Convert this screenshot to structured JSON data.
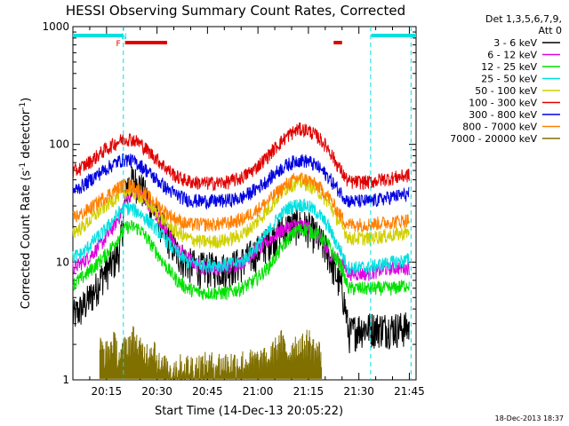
{
  "chart_data": {
    "type": "line",
    "title": "HESSI Observing Summary Count Rates, Corrected",
    "xlabel": "Start Time (14-Dec-13 20:05:22)",
    "ylabel": "Corrected Count Rate (s",
    "ylabel_sup": "-1",
    "ylabel_mid": " detector",
    "ylabel_end": ")",
    "x_unit": "minutes since 20:05:22",
    "xlim": [
      0,
      102
    ],
    "ylim": [
      1,
      1000
    ],
    "yscale": "log",
    "x_ticks": [
      {
        "t": 10,
        "label": "20:15"
      },
      {
        "t": 25,
        "label": "20:30"
      },
      {
        "t": 40,
        "label": "20:45"
      },
      {
        "t": 55,
        "label": "21:00"
      },
      {
        "t": 70,
        "label": "21:15"
      },
      {
        "t": 85,
        "label": "21:30"
      },
      {
        "t": 100,
        "label": "21:45"
      }
    ],
    "y_ticks": [
      {
        "v": 1,
        "label": "1"
      },
      {
        "v": 10,
        "label": "10"
      },
      {
        "v": 100,
        "label": "100"
      },
      {
        "v": 1000,
        "label": "1000"
      }
    ],
    "legend": {
      "position": "right",
      "header": [
        "Det 1,3,5,6,7,9,",
        "Att 0"
      ],
      "entries": [
        {
          "label": "3 - 6 keV",
          "color": "#000000"
        },
        {
          "label": "6 - 12 keV",
          "color": "#e000e0"
        },
        {
          "label": "12 - 25 keV",
          "color": "#00e000"
        },
        {
          "label": "25 - 50 keV",
          "color": "#00e0e0"
        },
        {
          "label": "50 - 100 keV",
          "color": "#d0d000"
        },
        {
          "label": "100 - 300 keV",
          "color": "#e00000"
        },
        {
          "label": "300 - 800 keV",
          "color": "#0000e0"
        },
        {
          "label": "800 - 7000 keV",
          "color": "#ff8000"
        },
        {
          "label": "7000 - 20000 keV",
          "color": "#807000"
        }
      ]
    },
    "series": [
      {
        "name": "3 - 6 keV",
        "x": [
          0,
          3,
          6,
          9,
          12,
          14,
          16,
          18,
          20,
          22,
          25,
          28,
          31,
          34,
          38,
          42,
          46,
          50,
          54,
          58,
          61,
          64,
          67,
          70,
          73,
          76,
          78,
          80,
          81,
          82,
          85,
          88,
          91,
          95,
          100
        ],
        "y": [
          3.5,
          4.2,
          5.5,
          8,
          10,
          13,
          45,
          50,
          45,
          35,
          25,
          17,
          12,
          10,
          9,
          9,
          9,
          10,
          12,
          15,
          18,
          20,
          21,
          20,
          16,
          12,
          8,
          6,
          4,
          2.5,
          2.8,
          2.8,
          2.8,
          2.8,
          2.8
        ]
      },
      {
        "name": "6 - 12 keV",
        "x": [
          0,
          3,
          6,
          9,
          12,
          14,
          16,
          18,
          20,
          22,
          25,
          28,
          31,
          34,
          38,
          42,
          46,
          50,
          54,
          58,
          61,
          64,
          67,
          70,
          73,
          76,
          78,
          80,
          81,
          82,
          85,
          88,
          91,
          95,
          100
        ],
        "y": [
          9,
          10,
          12,
          15,
          20,
          25,
          35,
          40,
          38,
          33,
          25,
          18,
          13,
          11,
          9,
          9,
          9,
          10,
          12,
          15,
          18,
          20,
          21,
          20,
          16,
          12,
          11,
          10,
          9,
          8,
          8,
          8,
          8.5,
          9,
          9
        ]
      },
      {
        "name": "12 - 25 keV",
        "x": [
          0,
          3,
          6,
          9,
          12,
          14,
          16,
          18,
          20,
          22,
          25,
          28,
          31,
          34,
          38,
          42,
          46,
          50,
          54,
          58,
          61,
          64,
          67,
          70,
          73,
          76,
          78,
          80,
          81,
          82,
          85,
          88,
          91,
          95,
          100
        ],
        "y": [
          6.5,
          7.5,
          9,
          11,
          14,
          17,
          20,
          20,
          19,
          16,
          12,
          9,
          7,
          6,
          5.5,
          5.5,
          5.5,
          6,
          7,
          9,
          12,
          16,
          19,
          19,
          17,
          14,
          11,
          9,
          7,
          6,
          6,
          6,
          6,
          6,
          6.5
        ]
      },
      {
        "name": "25 - 50 keV",
        "x": [
          0,
          3,
          6,
          9,
          12,
          14,
          16,
          18,
          20,
          22,
          25,
          28,
          31,
          34,
          38,
          42,
          46,
          50,
          54,
          58,
          61,
          64,
          67,
          70,
          73,
          76,
          78,
          80,
          81,
          82,
          85,
          88,
          91,
          95,
          100
        ],
        "y": [
          11,
          12,
          15,
          18,
          23,
          27,
          29,
          28,
          26,
          23,
          19,
          15,
          12,
          10,
          9.5,
          9.5,
          9.5,
          10,
          13,
          18,
          24,
          29,
          31,
          30,
          26,
          20,
          15,
          12,
          10,
          9,
          9,
          9,
          9.5,
          10,
          10.5
        ]
      },
      {
        "name": "50 - 100 keV",
        "x": [
          0,
          3,
          6,
          9,
          12,
          14,
          16,
          18,
          20,
          22,
          25,
          28,
          31,
          34,
          38,
          42,
          46,
          50,
          54,
          58,
          61,
          64,
          67,
          70,
          73,
          76,
          78,
          80,
          81,
          82,
          85,
          88,
          91,
          95,
          100
        ],
        "y": [
          18,
          20,
          24,
          29,
          34,
          38,
          40,
          39,
          36,
          32,
          26,
          21,
          18,
          16,
          15,
          15,
          15.5,
          17,
          21,
          28,
          36,
          44,
          48,
          46,
          40,
          32,
          25,
          20,
          18,
          16,
          16,
          16,
          16.5,
          17,
          18
        ]
      },
      {
        "name": "100 - 300 keV",
        "x": [
          0,
          3,
          6,
          9,
          12,
          14,
          16,
          18,
          20,
          22,
          25,
          28,
          31,
          34,
          38,
          42,
          46,
          50,
          54,
          58,
          61,
          64,
          67,
          70,
          73,
          76,
          78,
          80,
          81,
          82,
          85,
          88,
          91,
          95,
          100
        ],
        "y": [
          58,
          65,
          75,
          88,
          100,
          108,
          112,
          110,
          102,
          90,
          75,
          62,
          53,
          49,
          47,
          47,
          48,
          52,
          62,
          80,
          100,
          120,
          135,
          132,
          115,
          92,
          72,
          58,
          52,
          48,
          48,
          48,
          50,
          52,
          55
        ]
      },
      {
        "name": "300 - 800 keV",
        "x": [
          0,
          3,
          6,
          9,
          12,
          14,
          16,
          18,
          20,
          22,
          25,
          28,
          31,
          34,
          38,
          42,
          46,
          50,
          54,
          58,
          61,
          64,
          67,
          70,
          73,
          76,
          78,
          80,
          81,
          82,
          85,
          88,
          91,
          95,
          100
        ],
        "y": [
          40,
          45,
          52,
          60,
          68,
          73,
          75,
          72,
          67,
          60,
          50,
          42,
          37,
          34,
          33,
          33,
          33.5,
          35,
          41,
          50,
          60,
          68,
          74,
          72,
          64,
          53,
          44,
          38,
          35,
          33,
          33,
          33,
          34,
          36,
          38
        ]
      },
      {
        "name": "800 - 7000 keV",
        "x": [
          0,
          3,
          6,
          9,
          12,
          14,
          16,
          18,
          20,
          22,
          25,
          28,
          31,
          34,
          38,
          42,
          46,
          50,
          54,
          58,
          61,
          64,
          67,
          70,
          73,
          76,
          78,
          80,
          81,
          82,
          85,
          88,
          91,
          95,
          100
        ],
        "y": [
          24,
          26,
          30,
          35,
          40,
          44,
          45,
          44,
          41,
          37,
          31,
          26,
          23,
          21,
          21,
          21,
          21.5,
          23,
          27,
          33,
          40,
          47,
          52,
          50,
          44,
          36,
          29,
          24,
          22,
          21,
          21,
          21,
          21.5,
          22,
          23
        ]
      },
      {
        "name": "7000 - 20000 keV",
        "x": [
          8,
          10,
          12,
          14,
          16,
          18,
          20,
          22,
          24,
          25,
          26,
          58,
          60,
          62,
          64,
          66,
          68,
          70,
          72,
          74
        ],
        "y": [
          1.8,
          1.6,
          2.0,
          1.5,
          1.9,
          2.2,
          1.7,
          1.6,
          1.9,
          1.5,
          1.2,
          1.4,
          1.7,
          2.0,
          1.6,
          1.9,
          1.8,
          2.1,
          1.7,
          1.6
        ]
      }
    ],
    "annotations": {
      "flag_labels": [
        {
          "label": "F",
          "t": 13.5,
          "color": "#e00000"
        },
        {
          "label": "N",
          "t": 15.2,
          "color": "#00e0e0"
        }
      ],
      "cyan_bars": [
        [
          0,
          14.8
        ],
        [
          88.7,
          102
        ]
      ],
      "red_bars": [
        [
          15.5,
          28
        ],
        [
          77.5,
          80
        ]
      ],
      "dashed_lines": [
        15,
        88.5,
        100.5
      ]
    }
  },
  "timestamp": "18-Dec-2013 18:37"
}
